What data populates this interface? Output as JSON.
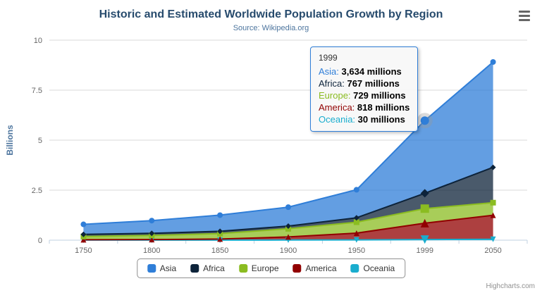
{
  "title": "Historic and Estimated Worldwide Population Growth by Region",
  "subtitle": "Source: Wikipedia.org",
  "credit": "Highcharts.com",
  "icons": {
    "export_menu": "hamburger-icon"
  },
  "chart_data": {
    "type": "area",
    "stacking": "normal",
    "title": "Historic and Estimated Worldwide Population Growth by Region",
    "subtitle": "Source: Wikipedia.org",
    "ylabel": "Billions",
    "xlabel": "",
    "unit": "millions",
    "ylim": [
      0,
      10
    ],
    "yticks": [
      0,
      2.5,
      5,
      7.5,
      10
    ],
    "grid": true,
    "legend_position": "bottom",
    "categories": [
      "1750",
      "1800",
      "1850",
      "1900",
      "1950",
      "1999",
      "2050"
    ],
    "series": [
      {
        "name": "Asia",
        "color": "#2f7ed8",
        "marker": "circle",
        "values": [
          502,
          635,
          809,
          947,
          1402,
          3634,
          5268
        ]
      },
      {
        "name": "Africa",
        "color": "#0d233a",
        "marker": "diamond",
        "values": [
          106,
          107,
          111,
          133,
          221,
          767,
          1766
        ]
      },
      {
        "name": "Europe",
        "color": "#8bbc21",
        "marker": "square",
        "values": [
          163,
          203,
          276,
          408,
          547,
          729,
          628
        ]
      },
      {
        "name": "America",
        "color": "#910000",
        "marker": "triangle",
        "values": [
          18,
          31,
          54,
          156,
          339,
          818,
          1201
        ]
      },
      {
        "name": "Oceania",
        "color": "#1aadce",
        "marker": "triangle-down",
        "values": [
          2,
          2,
          2,
          6,
          13,
          30,
          46
        ]
      }
    ],
    "hover_category": "1999",
    "hover_series": "Asia"
  },
  "tooltip": {
    "header": "1999",
    "rows": [
      {
        "name": "Asia",
        "value": "3,634 millions"
      },
      {
        "name": "Africa",
        "value": "767 millions"
      },
      {
        "name": "Europe",
        "value": "729 millions"
      },
      {
        "name": "America",
        "value": "818 millions"
      },
      {
        "name": "Oceania",
        "value": "30 millions"
      }
    ]
  }
}
